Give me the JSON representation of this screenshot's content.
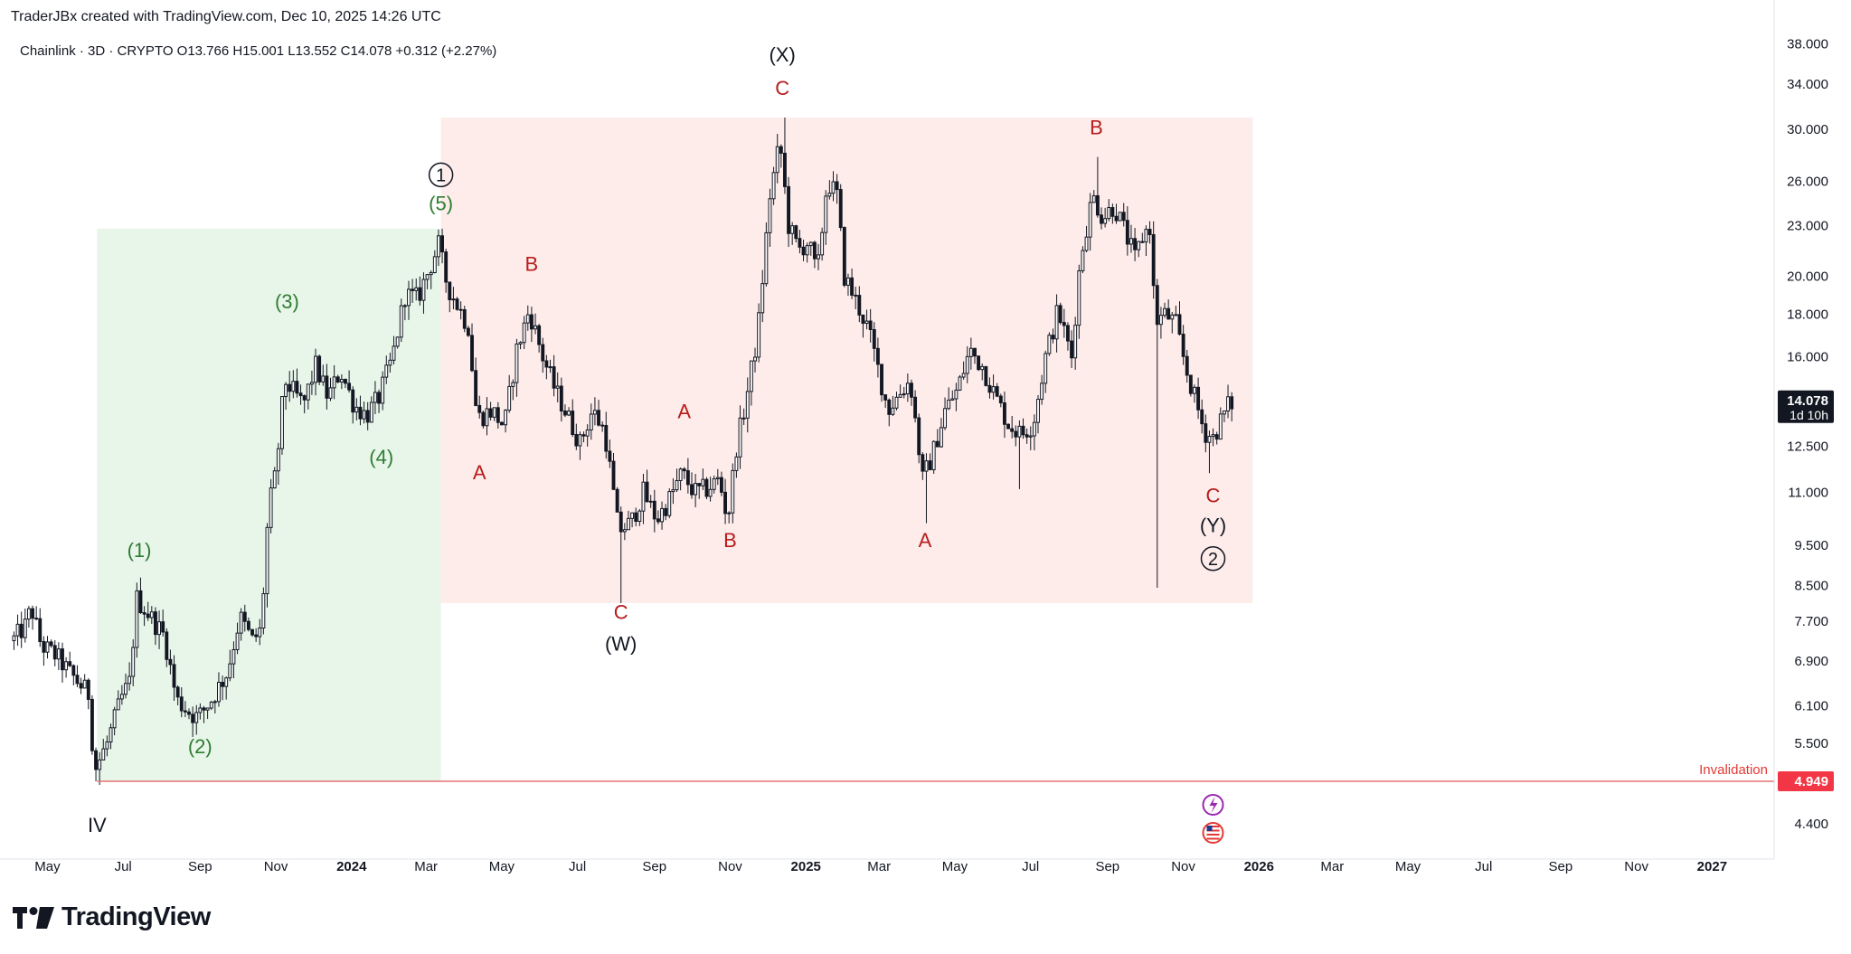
{
  "header": {
    "publisher": "TraderJBx created with TradingView.com, Dec 10, 2025 14:26 UTC"
  },
  "brand": {
    "name": "TradingView"
  },
  "colors": {
    "candle": "#131722",
    "green_zone": "#e8f5e9",
    "red_zone": "#fdecea",
    "green_label": "#2e7d32",
    "red_label": "#b71c1c",
    "invalidation_line": "#e57373",
    "invalidation_badge": "#f23645"
  },
  "chart_data": {
    "type": "candlestick",
    "symbol_info": {
      "name": "Chainlink",
      "interval": "3D",
      "exchange": "CRYPTO",
      "open": "O13.766",
      "high": "H15.001",
      "low": "L13.552",
      "close": "C14.078",
      "change": "+0.312 (+2.27%)"
    },
    "y_scale": "log",
    "y_ticks": [
      "38.000",
      "34.000",
      "30.000",
      "26.000",
      "23.000",
      "20.000",
      "18.000",
      "16.000",
      "12.500",
      "11.000",
      "9.500",
      "8.500",
      "7.700",
      "6.900",
      "6.100",
      "5.500",
      "4.400"
    ],
    "x_ticks": [
      {
        "label": "May",
        "date": "2023-05-01"
      },
      {
        "label": "Jul",
        "date": "2023-07-01"
      },
      {
        "label": "Sep",
        "date": "2023-09-01"
      },
      {
        "label": "Nov",
        "date": "2023-11-01"
      },
      {
        "label": "2024",
        "date": "2024-01-01",
        "bold": true
      },
      {
        "label": "Mar",
        "date": "2024-03-01"
      },
      {
        "label": "May",
        "date": "2024-05-01"
      },
      {
        "label": "Jul",
        "date": "2024-07-01"
      },
      {
        "label": "Sep",
        "date": "2024-09-01"
      },
      {
        "label": "Nov",
        "date": "2024-11-01"
      },
      {
        "label": "2025",
        "date": "2025-01-01",
        "bold": true
      },
      {
        "label": "Mar",
        "date": "2025-03-01"
      },
      {
        "label": "May",
        "date": "2025-05-01"
      },
      {
        "label": "Jul",
        "date": "2025-07-01"
      },
      {
        "label": "Sep",
        "date": "2025-09-01"
      },
      {
        "label": "Nov",
        "date": "2025-11-01"
      },
      {
        "label": "2026",
        "date": "2026-01-01",
        "bold": true
      },
      {
        "label": "Mar",
        "date": "2026-03-01"
      },
      {
        "label": "May",
        "date": "2026-05-01"
      },
      {
        "label": "Jul",
        "date": "2026-07-01"
      },
      {
        "label": "Sep",
        "date": "2026-09-01"
      },
      {
        "label": "Nov",
        "date": "2026-11-01"
      },
      {
        "label": "2027",
        "date": "2027-01-01",
        "bold": true
      }
    ],
    "price_path": [
      [
        "2023-04-05",
        7.3
      ],
      [
        "2023-04-15",
        7.6
      ],
      [
        "2023-04-20",
        8.0
      ],
      [
        "2023-04-28",
        7.2
      ],
      [
        "2023-05-10",
        7.0
      ],
      [
        "2023-05-20",
        6.7
      ],
      [
        "2023-05-28",
        6.5
      ],
      [
        "2023-06-05",
        6.3
      ],
      [
        "2023-06-10",
        5.1
      ],
      [
        "2023-06-20",
        5.5
      ],
      [
        "2023-07-01",
        6.2
      ],
      [
        "2023-07-08",
        6.5
      ],
      [
        "2023-07-14",
        8.2
      ],
      [
        "2023-07-25",
        7.8
      ],
      [
        "2023-08-05",
        7.4
      ],
      [
        "2023-08-15",
        6.2
      ],
      [
        "2023-08-25",
        6.0
      ],
      [
        "2023-09-01",
        5.9
      ],
      [
        "2023-09-12",
        6.2
      ],
      [
        "2023-09-25",
        6.7
      ],
      [
        "2023-10-05",
        7.8
      ],
      [
        "2023-10-15",
        7.3
      ],
      [
        "2023-10-22",
        7.5
      ],
      [
        "2023-10-28",
        10.5
      ],
      [
        "2023-11-03",
        11.6
      ],
      [
        "2023-11-10",
        15.0
      ],
      [
        "2023-11-25",
        14.0
      ],
      [
        "2023-12-05",
        15.6
      ],
      [
        "2023-12-15",
        14.3
      ],
      [
        "2023-12-25",
        15.4
      ],
      [
        "2024-01-05",
        14.0
      ],
      [
        "2024-01-15",
        13.6
      ],
      [
        "2024-01-25",
        14.3
      ],
      [
        "2024-02-05",
        16.0
      ],
      [
        "2024-02-15",
        19.0
      ],
      [
        "2024-02-25",
        18.8
      ],
      [
        "2024-03-05",
        20.3
      ],
      [
        "2024-03-13",
        21.8
      ],
      [
        "2024-03-20",
        19.5
      ],
      [
        "2024-03-28",
        18.5
      ],
      [
        "2024-04-06",
        17.4
      ],
      [
        "2024-04-13",
        13.5
      ],
      [
        "2024-04-25",
        13.8
      ],
      [
        "2024-05-05",
        13.2
      ],
      [
        "2024-05-15",
        16.3
      ],
      [
        "2024-05-25",
        18.2
      ],
      [
        "2024-06-05",
        16.0
      ],
      [
        "2024-06-15",
        14.6
      ],
      [
        "2024-06-25",
        13.6
      ],
      [
        "2024-07-05",
        12.6
      ],
      [
        "2024-07-15",
        13.8
      ],
      [
        "2024-07-25",
        13.0
      ],
      [
        "2024-08-05",
        9.9
      ],
      [
        "2024-08-15",
        10.1
      ],
      [
        "2024-08-25",
        11.0
      ],
      [
        "2024-09-05",
        10.2
      ],
      [
        "2024-09-15",
        10.8
      ],
      [
        "2024-09-25",
        11.6
      ],
      [
        "2024-10-05",
        11.0
      ],
      [
        "2024-10-15",
        11.1
      ],
      [
        "2024-10-25",
        11.4
      ],
      [
        "2024-11-01",
        10.2
      ],
      [
        "2024-11-08",
        12.5
      ],
      [
        "2024-11-15",
        14.0
      ],
      [
        "2024-11-25",
        17.0
      ],
      [
        "2024-12-05",
        25.0
      ],
      [
        "2024-12-13",
        29.0
      ],
      [
        "2024-12-20",
        23.0
      ],
      [
        "2024-12-28",
        21.5
      ],
      [
        "2025-01-05",
        22.0
      ],
      [
        "2025-01-12",
        20.0
      ],
      [
        "2025-01-20",
        26.0
      ],
      [
        "2025-01-28",
        25.0
      ],
      [
        "2025-02-03",
        20.0
      ],
      [
        "2025-02-12",
        18.7
      ],
      [
        "2025-02-22",
        17.3
      ],
      [
        "2025-03-02",
        15.5
      ],
      [
        "2025-03-10",
        13.8
      ],
      [
        "2025-03-20",
        14.5
      ],
      [
        "2025-03-28",
        15.0
      ],
      [
        "2025-04-07",
        11.4
      ],
      [
        "2025-04-15",
        12.2
      ],
      [
        "2025-04-25",
        13.8
      ],
      [
        "2025-05-05",
        14.6
      ],
      [
        "2025-05-15",
        16.3
      ],
      [
        "2025-05-25",
        15.6
      ],
      [
        "2025-06-05",
        14.3
      ],
      [
        "2025-06-15",
        13.3
      ],
      [
        "2025-06-25",
        12.9
      ],
      [
        "2025-07-05",
        13.3
      ],
      [
        "2025-07-15",
        16.0
      ],
      [
        "2025-07-25",
        18.2
      ],
      [
        "2025-08-05",
        16.0
      ],
      [
        "2025-08-12",
        21.0
      ],
      [
        "2025-08-22",
        25.0
      ],
      [
        "2025-08-30",
        23.5
      ],
      [
        "2025-09-08",
        24.3
      ],
      [
        "2025-09-15",
        23.0
      ],
      [
        "2025-09-25",
        21.0
      ],
      [
        "2025-10-02",
        22.5
      ],
      [
        "2025-10-08",
        23.0
      ],
      [
        "2025-10-11",
        17.6
      ],
      [
        "2025-10-20",
        18.0
      ],
      [
        "2025-10-28",
        17.5
      ],
      [
        "2025-11-05",
        15.5
      ],
      [
        "2025-11-12",
        14.3
      ],
      [
        "2025-11-20",
        13.0
      ],
      [
        "2025-11-27",
        12.8
      ],
      [
        "2025-12-04",
        13.5
      ],
      [
        "2025-12-10",
        14.078
      ]
    ],
    "extreme_wicks": [
      {
        "date": "2023-06-12",
        "low": 4.9
      },
      {
        "date": "2024-08-05",
        "low": 8.1
      },
      {
        "date": "2024-12-13",
        "high": 31.0
      },
      {
        "date": "2025-08-23",
        "high": 27.8
      },
      {
        "date": "2025-10-11",
        "low": 8.45
      },
      {
        "date": "2024-03-13",
        "high": 22.8
      },
      {
        "date": "2025-04-07",
        "low": 10.1
      },
      {
        "date": "2025-06-22",
        "low": 11.1
      },
      {
        "date": "2025-11-21",
        "low": 11.6
      }
    ],
    "zones": [
      {
        "name": "green-zone",
        "x0": "2023-06-10",
        "x1": "2024-03-13",
        "y_low": 4.949,
        "y_high": 22.8
      },
      {
        "name": "red-zone",
        "x0": "2024-03-13",
        "x1": "2025-12-27",
        "y_low": 8.1,
        "y_high": 31.0
      }
    ],
    "current_price": {
      "value": 14.078,
      "label": "14.078",
      "countdown": "1d 10h"
    },
    "invalidation": {
      "value": 4.949,
      "label": "4.949",
      "text": "Invalidation",
      "x0": "2023-06-10"
    },
    "wave_labels": [
      {
        "text": "IV",
        "date": "2023-06-10",
        "price": 4.3,
        "color": "black"
      },
      {
        "text": "(1)",
        "date": "2023-07-14",
        "price": 9.2,
        "color": "green"
      },
      {
        "text": "(2)",
        "date": "2023-09-01",
        "price": 5.35,
        "color": "green"
      },
      {
        "text": "(3)",
        "date": "2023-11-10",
        "price": 18.3,
        "color": "green"
      },
      {
        "text": "(4)",
        "date": "2024-01-25",
        "price": 11.9,
        "color": "green"
      },
      {
        "text": "(5)",
        "date": "2024-03-13",
        "price": 24.0,
        "color": "green"
      },
      {
        "text": "1",
        "date": "2024-03-13",
        "price": 26.0,
        "color": "black",
        "circled": true
      },
      {
        "text": "A",
        "date": "2024-04-13",
        "price": 11.4,
        "color": "red"
      },
      {
        "text": "B",
        "date": "2024-05-25",
        "price": 20.3,
        "color": "red"
      },
      {
        "text": "C",
        "date": "2024-08-05",
        "price": 7.75,
        "color": "red"
      },
      {
        "text": "(W)",
        "date": "2024-08-05",
        "price": 7.1,
        "color": "black"
      },
      {
        "text": "A",
        "date": "2024-09-25",
        "price": 13.5,
        "color": "red"
      },
      {
        "text": "B",
        "date": "2024-11-01",
        "price": 9.45,
        "color": "red"
      },
      {
        "text": "C",
        "date": "2024-12-13",
        "price": 33.0,
        "color": "red"
      },
      {
        "text": "(X)",
        "date": "2024-12-13",
        "price": 36.2,
        "color": "black"
      },
      {
        "text": "A",
        "date": "2025-04-07",
        "price": 9.45,
        "color": "red"
      },
      {
        "text": "B",
        "date": "2025-08-23",
        "price": 29.6,
        "color": "red"
      },
      {
        "text": "C",
        "date": "2025-11-25",
        "price": 10.7,
        "color": "red"
      },
      {
        "text": "(Y)",
        "date": "2025-11-25",
        "price": 9.85,
        "color": "black"
      },
      {
        "text": "2",
        "date": "2025-11-25",
        "price": 9.0,
        "color": "black",
        "circled": true
      }
    ]
  }
}
